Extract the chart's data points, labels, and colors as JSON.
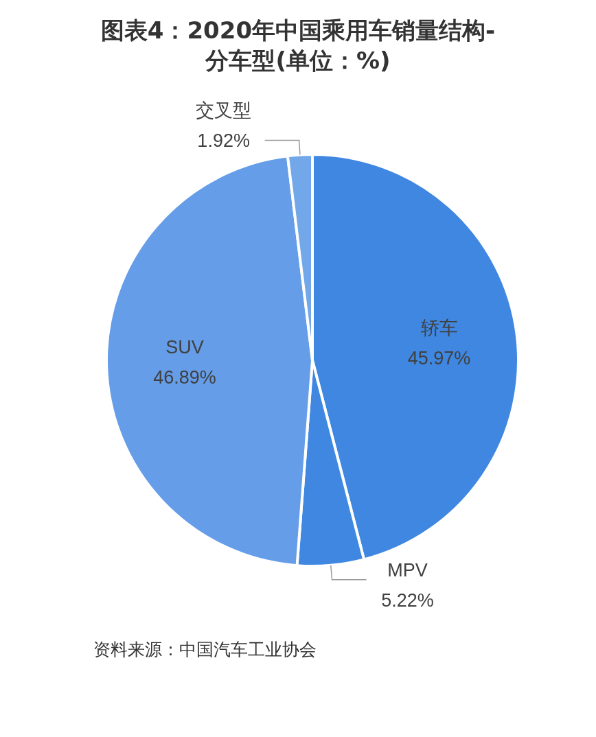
{
  "chart_data": {
    "type": "pie",
    "title": "图表4：2020年中国乘用车销量结构-分车型(单位：%)",
    "categories": [
      "轿车",
      "MPV",
      "SUV",
      "交叉型"
    ],
    "values": [
      45.97,
      5.22,
      46.89,
      1.92
    ],
    "colors": [
      "#3f87e0",
      "#3f87e0",
      "#659de8",
      "#72a7ea"
    ],
    "value_labels": [
      "45.97%",
      "5.22%",
      "46.89%",
      "1.92%"
    ],
    "legend": false,
    "annotations": [
      "资料来源：中国汽车工业协会"
    ]
  }
}
